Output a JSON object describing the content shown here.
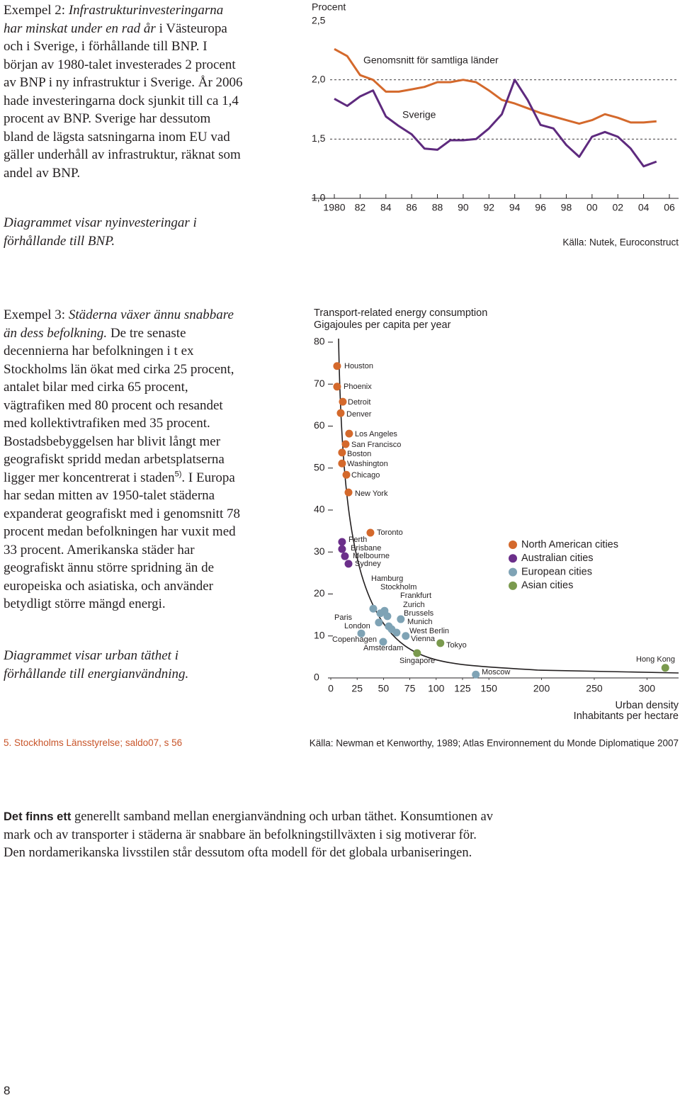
{
  "sections": [
    {
      "intro": "Exempel 2:",
      "title": "Infrastrukturinvesteringarna har minskat under en rad år",
      "body": "i Västeuropa och i Sverige, i förhållande till BNP. I början av 1980-talet investerades 2 procent av BNP i ny infrastruktur i Sverige. År 2006 hade investeringarna dock sjunkit till ca 1,4 procent av BNP. Sverige har dessutom bland de lägsta satsningarna inom EU vad gäller underhåll av infrastruktur, räknat som andel av BNP.",
      "caption": "Diagrammet visar nyinvesteringar i förhållande till BNP."
    },
    {
      "intro": "Exempel 3:",
      "title": "Städerna växer ännu snabbare än dess befolkning.",
      "body": "De tre senaste decennierna har befolkningen i t ex Stockholms län ökat med cirka 25 procent, antalet bilar med cirka 65 procent, vägtrafiken med 80 procent och resandet med kollektivtrafiken med 35 procent. Bostadsbebyggelsen har blivit långt mer geografiskt spridd medan arbetsplatserna ligger mer koncentrerat i staden",
      "footnote_ref": "5)",
      "body_end": ". I Europa har sedan mitten av 1950-talet städerna expanderat geografiskt med i genomsnitt 78 procent medan befolkningen har vuxit med 33 procent. Amerikanska städer har geografiskt ännu större spridning än de europeiska och asiatiska, och använder betydligt större mängd energi.",
      "caption": "Diagrammet visar urban täthet i förhållande till energianvändning."
    }
  ],
  "chart_data": [
    {
      "type": "line",
      "y_label": "Procent",
      "x": [
        1980,
        1981,
        1982,
        1983,
        1984,
        1985,
        1986,
        1987,
        1988,
        1989,
        1990,
        1991,
        1992,
        1993,
        1994,
        1995,
        1996,
        1997,
        1998,
        1999,
        2000,
        2001,
        2002,
        2003,
        2004,
        2005
      ],
      "xlim": [
        1980,
        2006
      ],
      "xticks": [
        1980,
        {
          "value": 1982,
          "label": "82"
        },
        {
          "value": 1984,
          "label": "84"
        },
        {
          "value": 1986,
          "label": "86"
        },
        {
          "value": 1988,
          "label": "88"
        },
        {
          "value": 1990,
          "label": "90"
        },
        {
          "value": 1992,
          "label": "92"
        },
        {
          "value": 1994,
          "label": "94"
        },
        {
          "value": 1996,
          "label": "96"
        },
        {
          "value": 1998,
          "label": "98"
        },
        {
          "value": 2000,
          "label": "00"
        },
        {
          "value": 2002,
          "label": "02"
        },
        {
          "value": 2004,
          "label": "04"
        },
        {
          "value": 2006,
          "label": "06"
        }
      ],
      "ylim": [
        1.0,
        2.5
      ],
      "yticks": [
        {
          "value": 1.0,
          "label": "1,0"
        },
        {
          "value": 1.5,
          "label": "1,5"
        },
        {
          "value": 2.0,
          "label": "2,0"
        },
        {
          "value": 2.5,
          "label": "2,5"
        }
      ],
      "grid": true,
      "series": [
        {
          "name": "Genomsnitt för samtliga länder",
          "color": "#d4692c",
          "values": [
            2.26,
            2.2,
            2.04,
            2.0,
            1.9,
            1.9,
            1.92,
            1.94,
            1.98,
            1.98,
            2.0,
            1.98,
            1.91,
            1.83,
            1.8,
            1.76,
            1.72,
            1.69,
            1.66,
            1.63,
            1.66,
            1.71,
            1.68,
            1.64,
            1.64,
            1.65
          ]
        },
        {
          "name": "Sverige",
          "color": "#5e2a7e",
          "values": [
            1.84,
            1.78,
            1.86,
            1.91,
            1.69,
            1.61,
            1.54,
            1.42,
            1.41,
            1.49,
            1.49,
            1.5,
            1.59,
            1.71,
            2.0,
            1.83,
            1.62,
            1.59,
            1.45,
            1.35,
            1.52,
            1.56,
            1.52,
            1.42,
            1.27,
            1.31
          ]
        }
      ],
      "source": "Källa: Nutek, Euroconstruct"
    },
    {
      "type": "scatter",
      "title": "Transport-related energy consumption",
      "subtitle": "Gigajoules per capita per year",
      "x_label": "Urban density",
      "x_sublabel": "Inhabitants per hectare",
      "xlim": [
        0,
        330
      ],
      "xticks": [
        0,
        25,
        50,
        75,
        100,
        125,
        150,
        200,
        250,
        300
      ],
      "ylim": [
        0,
        80
      ],
      "yticks": [
        0,
        10,
        20,
        30,
        40,
        50,
        60,
        70,
        80
      ],
      "legend": "right",
      "series": [
        {
          "name": "North American cities",
          "color": "#d4692c",
          "point_names": [
            "Houston",
            "Phoenix",
            "Detroit",
            "Denver",
            "Los Angeles",
            "San Francisco",
            "Boston",
            "Washington",
            "Chicago",
            "New York",
            "Toronto"
          ],
          "x": [
            6.0,
            6.0,
            11.4,
            9.4,
            17.4,
            14.1,
            10.7,
            10.7,
            14.8,
            16.8,
            37.6
          ],
          "values": [
            74.3,
            69.4,
            65.8,
            63.1,
            58.2,
            55.7,
            53.7,
            51.1,
            48.4,
            44.2,
            34.6
          ]
        },
        {
          "name": "Australian cities",
          "color": "#6b2f8a",
          "point_names": [
            "Perth",
            "Brisbane",
            "Melbourne",
            "Sydney"
          ],
          "x": [
            10.7,
            10.7,
            13.4,
            16.8
          ],
          "values": [
            32.4,
            30.7,
            29.0,
            27.2
          ]
        },
        {
          "name": "European cities",
          "color": "#7fa3b5",
          "point_names": [
            "Hamburg",
            "Stockholm",
            "Frankfurt",
            "Zurich",
            "Brussels",
            "Paris",
            "Munich",
            "London",
            "West Berlin",
            "Copenhagen",
            "Vienna",
            "Amsterdam",
            "Moscow"
          ],
          "x": [
            40.3,
            51.0,
            53.7,
            47.0,
            66.4,
            45.6,
            57.7,
            55.0,
            62.4,
            28.9,
            71.1,
            49.7,
            137.6
          ],
          "values": [
            16.5,
            16.0,
            14.7,
            15.4,
            14.0,
            13.2,
            11.6,
            12.3,
            10.8,
            10.6,
            10.0,
            8.6,
            0.8
          ]
        },
        {
          "name": "Asian cities",
          "color": "#7a9a4e",
          "point_names": [
            "Tokyo",
            "Singapore",
            "Hong Kong"
          ],
          "x": [
            104.0,
            81.9,
            317.4
          ],
          "values": [
            8.3,
            5.9,
            2.4
          ]
        }
      ],
      "source": "Källa: Newman et Kenworthy, 1989; Atlas Environnement du Monde Diplomatique 2007"
    }
  ],
  "footnote": "5. Stockholms Länsstyrelse; saldo07, s 56",
  "summary": {
    "lead": "Det finns ett",
    "text": "generellt samband mellan energianvändning och urban täthet. Konsumtionen av mark och av transporter i städerna är snabbare än befolkningstillväxten i sig motiverar för. Den nordamerikanska livsstilen står dessutom ofta modell för det globala urbaniseringen."
  },
  "page_number": "8"
}
